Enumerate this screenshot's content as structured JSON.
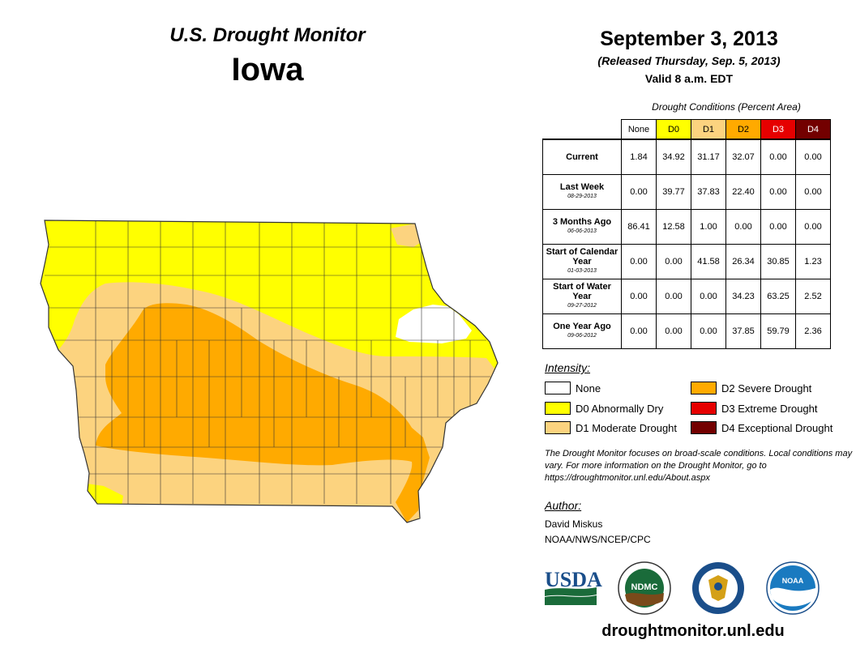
{
  "title": "U.S. Drought Monitor",
  "state": "Iowa",
  "date": "September 3, 2013",
  "released": "(Released Thursday, Sep. 5, 2013)",
  "valid": "Valid 8 a.m. EDT",
  "table": {
    "caption": "Drought Conditions (Percent Area)",
    "columns": [
      "None",
      "D0",
      "D1",
      "D2",
      "D3",
      "D4"
    ],
    "column_colors": [
      "#ffffff",
      "#ffff00",
      "#fcd37f",
      "#ffaa00",
      "#e60000",
      "#730000"
    ],
    "rows": [
      {
        "label": "Current",
        "date": "",
        "values": [
          "1.84",
          "34.92",
          "31.17",
          "32.07",
          "0.00",
          "0.00"
        ]
      },
      {
        "label": "Last Week",
        "date": "08-29-2013",
        "values": [
          "0.00",
          "39.77",
          "37.83",
          "22.40",
          "0.00",
          "0.00"
        ]
      },
      {
        "label": "3 Months Ago",
        "date": "06-06-2013",
        "values": [
          "86.41",
          "12.58",
          "1.00",
          "0.00",
          "0.00",
          "0.00"
        ]
      },
      {
        "label": "Start of Calendar Year",
        "date": "01-03-2013",
        "values": [
          "0.00",
          "0.00",
          "41.58",
          "26.34",
          "30.85",
          "1.23"
        ]
      },
      {
        "label": "Start of Water Year",
        "date": "09-27-2012",
        "values": [
          "0.00",
          "0.00",
          "0.00",
          "34.23",
          "63.25",
          "2.52"
        ]
      },
      {
        "label": "One Year Ago",
        "date": "09-06-2012",
        "values": [
          "0.00",
          "0.00",
          "0.00",
          "37.85",
          "59.79",
          "2.36"
        ]
      }
    ]
  },
  "legend": {
    "heading": "Intensity:",
    "items": [
      {
        "label": "None",
        "color": "#ffffff"
      },
      {
        "label": "D0 Abnormally Dry",
        "color": "#ffff00"
      },
      {
        "label": "D1 Moderate Drought",
        "color": "#fcd37f"
      },
      {
        "label": "D2 Severe Drought",
        "color": "#ffaa00"
      },
      {
        "label": "D3 Extreme Drought",
        "color": "#e60000"
      },
      {
        "label": "D4 Exceptional Drought",
        "color": "#730000"
      }
    ]
  },
  "note": "The Drought Monitor focuses on broad-scale conditions. Local conditions may vary. For more information on the Drought Monitor, go to https://droughtmonitor.unl.edu/About.aspx",
  "author": {
    "heading": "Author:",
    "name": "David Miskus",
    "org": "NOAA/NWS/NCEP/CPC"
  },
  "logos": {
    "usda": "USDA",
    "ndmc": "NDMC",
    "noaa": "NOAA"
  },
  "url": "droughtmonitor.unl.edu"
}
